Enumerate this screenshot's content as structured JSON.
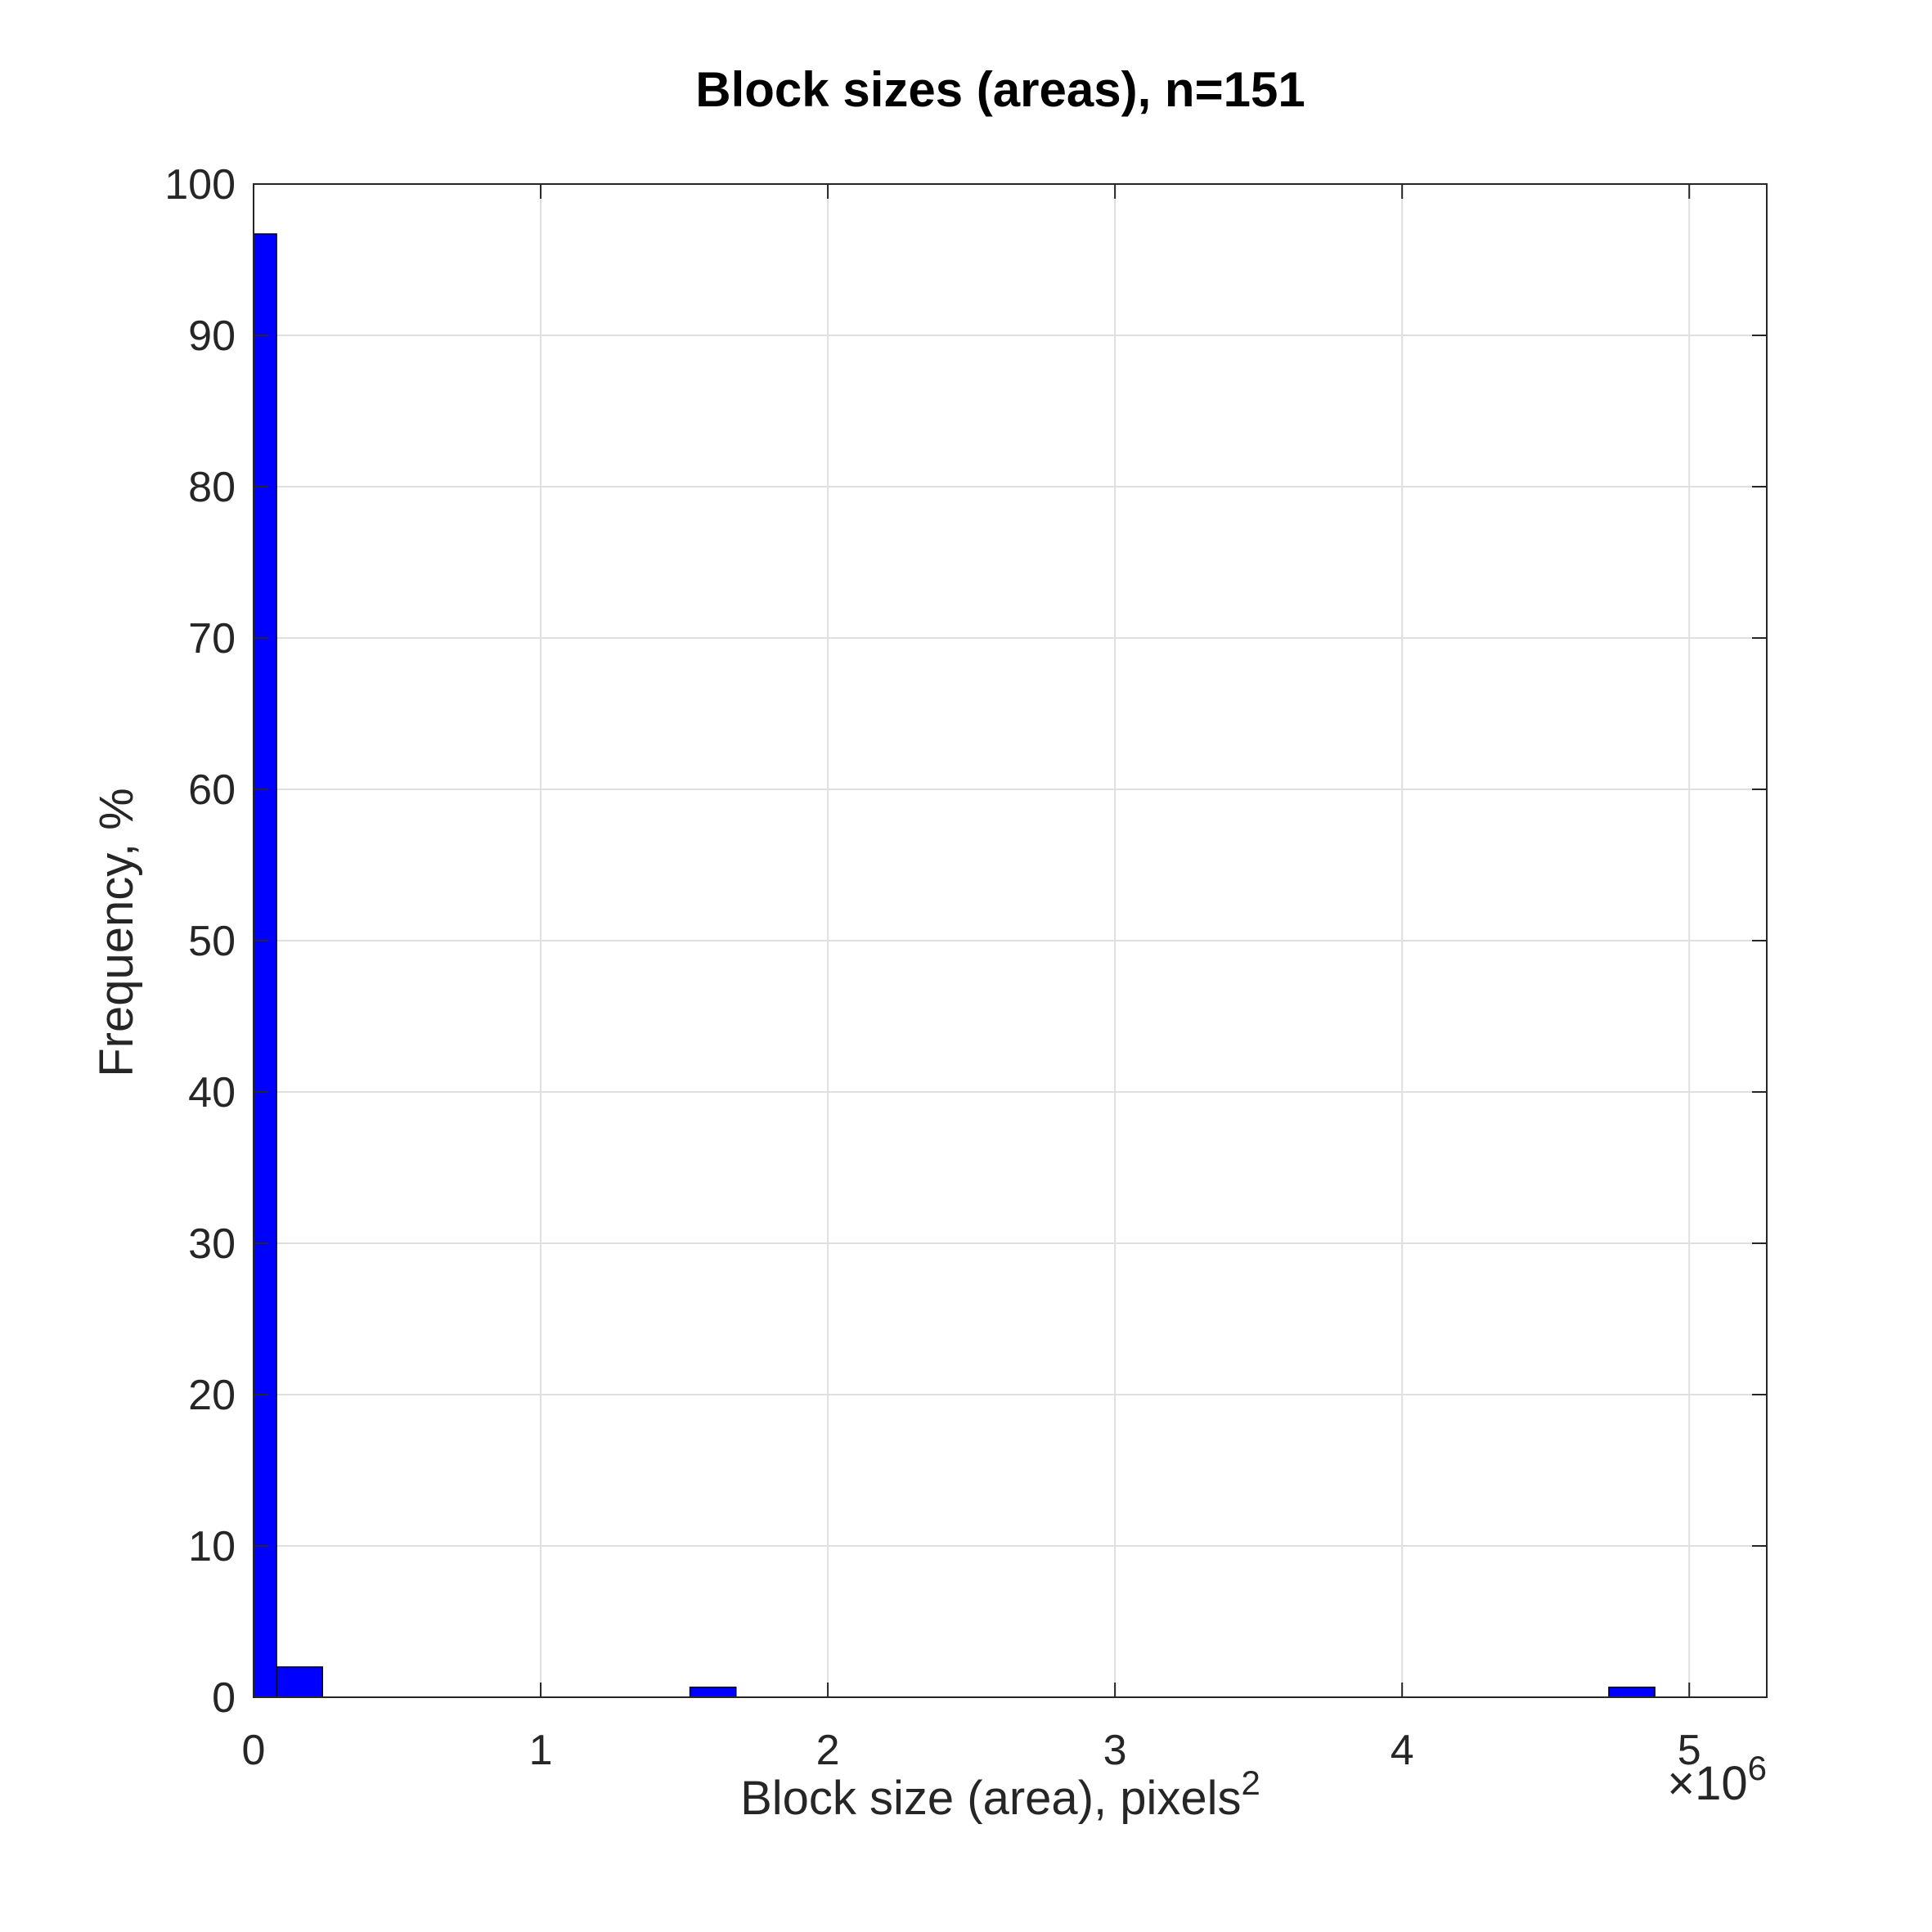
{
  "chart_data": {
    "type": "bar",
    "title": "Block sizes (areas), n=151",
    "xlabel": "Block size (area), pixels",
    "xlabel_superscript": "2",
    "ylabel": "Frequency, %",
    "x_exponent_base": "×10",
    "x_exponent_power": "6",
    "xlim": [
      0,
      5.27
    ],
    "ylim": [
      0,
      100
    ],
    "x_ticks": [
      0,
      1,
      2,
      3,
      4,
      5
    ],
    "y_ticks": [
      0,
      10,
      20,
      30,
      40,
      50,
      60,
      70,
      80,
      90,
      100
    ],
    "grid": true,
    "bar_color": "#0000ff",
    "bar_edge_color": "#000000",
    "bins": [
      {
        "x0": 0.0,
        "x1": 0.08,
        "value": 96.7
      },
      {
        "x0": 0.08,
        "x1": 0.24,
        "value": 2.0
      },
      {
        "x0": 1.52,
        "x1": 1.68,
        "value": 0.66
      },
      {
        "x0": 4.72,
        "x1": 4.88,
        "value": 0.66
      }
    ]
  }
}
